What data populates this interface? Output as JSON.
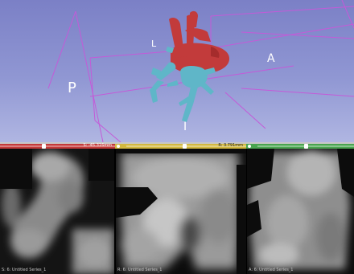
{
  "view3d": {
    "labels": {
      "L": "L",
      "A": "A",
      "P": "P",
      "I": "I"
    },
    "colors": {
      "background": "#8a90cf",
      "box": "#c45ad8",
      "vessel_red": "#c23b3b",
      "vessel_cyan": "#5fb6c8"
    }
  },
  "slices": [
    {
      "id": "red",
      "color": "#c43a3a",
      "offset_readout": "S: -45.316mm",
      "caption": "S: 6: Untitled Series_1"
    },
    {
      "id": "yellow",
      "color": "#d3b93f",
      "offset_readout": "R: 3.791mm",
      "caption": "R: 6: Untitled Series_1"
    },
    {
      "id": "green",
      "color": "#49a54f",
      "offset_readout": "A: ...",
      "caption": "A: 6: Untitled Series_1"
    }
  ]
}
